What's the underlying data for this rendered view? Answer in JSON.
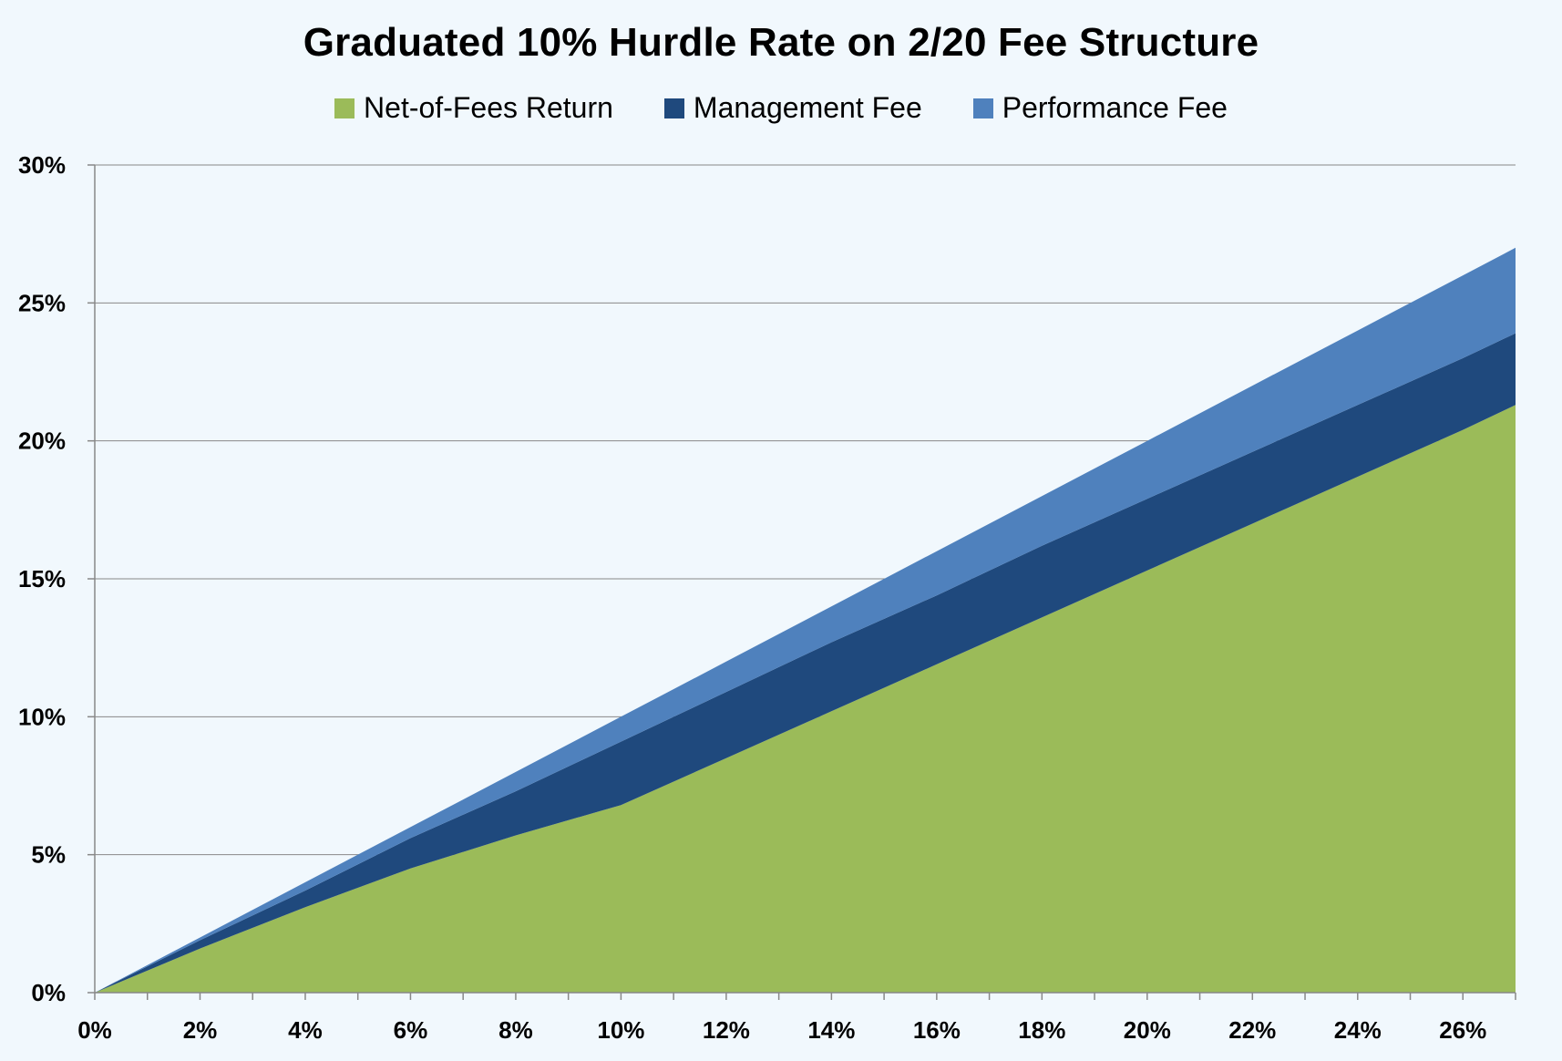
{
  "chart_data": {
    "type": "area",
    "stacked": true,
    "title": "Graduated 10% Hurdle Rate on 2/20 Fee Structure",
    "xlabel": "",
    "ylabel": "",
    "x": [
      0,
      2,
      4,
      6,
      8,
      10,
      12,
      14,
      16,
      18,
      20,
      22,
      24,
      26,
      27
    ],
    "xlim": [
      0,
      27
    ],
    "ylim": [
      0,
      30
    ],
    "x_ticks": [
      "0%",
      "2%",
      "4%",
      "6%",
      "8%",
      "10%",
      "12%",
      "14%",
      "16%",
      "18%",
      "20%",
      "22%",
      "24%",
      "26%"
    ],
    "x_tick_values": [
      0,
      2,
      4,
      6,
      8,
      10,
      12,
      14,
      16,
      18,
      20,
      22,
      24,
      26
    ],
    "y_ticks": [
      "0%",
      "5%",
      "10%",
      "15%",
      "20%",
      "25%",
      "30%"
    ],
    "y_tick_values": [
      0,
      5,
      10,
      15,
      20,
      25,
      30
    ],
    "grid": "horizontal",
    "legend_position": "top",
    "series": [
      {
        "name": "Net-of-Fees Return",
        "color": "#9bbb59",
        "values": [
          0,
          1.6,
          3.1,
          4.5,
          5.7,
          6.8,
          8.5,
          10.2,
          11.9,
          13.6,
          15.3,
          17.0,
          18.7,
          20.4,
          21.3
        ]
      },
      {
        "name": "Management Fee",
        "color": "#1f497d",
        "values": [
          0,
          0.3,
          0.6,
          1.1,
          1.6,
          2.3,
          2.4,
          2.5,
          2.5,
          2.6,
          2.6,
          2.6,
          2.6,
          2.6,
          2.6
        ]
      },
      {
        "name": "Performance Fee",
        "color": "#4f81bd",
        "values": [
          0,
          0.1,
          0.3,
          0.4,
          0.7,
          0.9,
          1.1,
          1.3,
          1.6,
          1.8,
          2.1,
          2.4,
          2.7,
          3.0,
          3.1
        ]
      }
    ]
  },
  "colors": {
    "background": "#f1f8fd",
    "gridline": "#888888",
    "axis": "#888888"
  }
}
